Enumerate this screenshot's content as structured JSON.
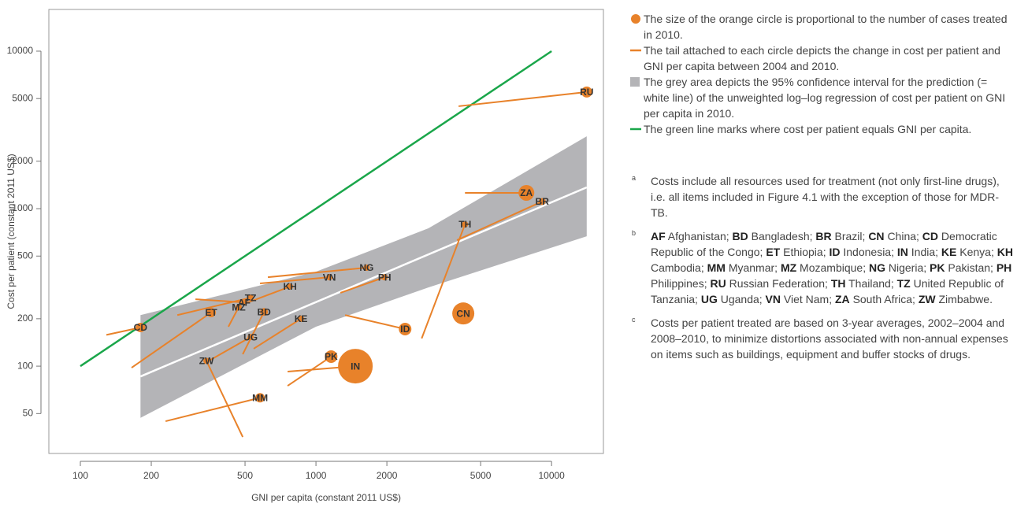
{
  "chart_data": {
    "type": "bubble",
    "x_label": "GNI per capita (constant 2011 US$)",
    "y_label": "Cost per patient (constant 2011 US$)",
    "xscale": "log",
    "yscale": "log",
    "xlim": [
      73.5,
      16600
    ],
    "ylim": [
      27.9,
      18400
    ],
    "xticks": [
      100,
      200,
      500,
      1000,
      2000,
      5000,
      10000
    ],
    "yticks": [
      50,
      100,
      200,
      500,
      1000,
      2000,
      5000,
      10000
    ],
    "color": "#e8822a",
    "labels": [
      "RU",
      "ZA",
      "BR",
      "TH",
      "CN",
      "ID",
      "IN",
      "PK",
      "MM",
      "ZW",
      "UG",
      "BD",
      "KE",
      "ET",
      "CD",
      "MZ",
      "AF",
      "TZ",
      "KH",
      "VN",
      "NG",
      "PH"
    ],
    "x": [
      14100,
      7820,
      9120,
      4290,
      4220,
      2390,
      1470,
      1160,
      579,
      343,
      528,
      602,
      864,
      359,
      180,
      470,
      496,
      528,
      776,
      1140,
      1640,
      1955
    ],
    "y": [
      5500,
      1260,
      1110,
      794,
      216,
      172,
      100,
      115,
      63,
      108,
      153,
      221,
      200,
      219,
      176,
      237,
      254,
      272,
      320,
      367,
      422,
      367
    ],
    "sizes": [
      49,
      100,
      20,
      16,
      196,
      64,
      484,
      64,
      36,
      16,
      16,
      25,
      16,
      36,
      36,
      16,
      16,
      16,
      16,
      16,
      16,
      16
    ],
    "tail_x": [
      4030,
      4290,
      3970,
      2810,
      null,
      1330,
      758,
      758,
      230,
      489,
      343,
      489,
      544,
      165,
      129,
      425,
      308,
      258,
      504,
      579,
      625,
      1270
    ],
    "tail_y": [
      4470,
      1260,
      631,
      150,
      null,
      211,
      92.3,
      75,
      44.7,
      35.5,
      106,
      119,
      129,
      97.7,
      158,
      178,
      266,
      211,
      251,
      335,
      367,
      292
    ],
    "band": {
      "color": "#b4b4b7",
      "x": [
        180,
        1000,
        3000,
        14100
      ],
      "upper": [
        211,
        398,
        750,
        2880
      ],
      "lower": [
        47,
        178,
        316,
        668
      ]
    },
    "regression": {
      "color": "#ffffff",
      "x": [
        180,
        14100
      ],
      "y": [
        86,
        1365
      ]
    },
    "equality": {
      "color": "#1aa64a",
      "x": [
        100,
        10000
      ],
      "y": [
        100,
        10000
      ]
    },
    "legend": [
      "The size of the orange circle is proportional to the number of cases treated in 2010.",
      "The tail attached to each circle depicts the change in cost per patient and GNI per capita between 2004 and 2010.",
      "The grey area depicts the 95% confidence interval for the prediction (= white line) of the unweighted log–log regression of cost per patient on GNI per capita in 2010.",
      "The green line marks where cost per patient equals GNI per capita."
    ],
    "notes": {
      "a": {
        "marker": "a",
        "text": "Costs include all resources used for treatment (not only first-line drugs), i.e. all items included in Figure 4.1 with the exception of those for MDR-TB."
      },
      "b": {
        "marker": "b",
        "entries": [
          [
            "AF",
            "Afghanistan;"
          ],
          [
            "BD",
            "Bangladesh;"
          ],
          [
            "BR",
            "Brazil;"
          ],
          [
            "CN",
            "China;"
          ],
          [
            "CD",
            "Democratic Republic of the Congo;"
          ],
          [
            "ET",
            "Ethiopia;"
          ],
          [
            "ID",
            "Indonesia;"
          ],
          [
            "IN",
            "India;"
          ],
          [
            "KE",
            "Kenya;"
          ],
          [
            "KH",
            "Cambodia;"
          ],
          [
            "MM",
            "Myanmar;"
          ],
          [
            "MZ",
            "Mozambique;"
          ],
          [
            "NG",
            "Nigeria;"
          ],
          [
            "PK",
            "Pakistan;"
          ],
          [
            "PH",
            "Philippines;"
          ],
          [
            "RU",
            "Russian Federation;"
          ],
          [
            "TH",
            "Thailand;"
          ],
          [
            "TZ",
            "United Republic of Tanzania;"
          ],
          [
            "UG",
            "Uganda;"
          ],
          [
            "VN",
            "Viet Nam;"
          ],
          [
            "ZA",
            "South Africa;"
          ],
          [
            "ZW",
            "Zimbabwe."
          ]
        ]
      },
      "c": {
        "marker": "c",
        "text": "Costs per patient treated are based on 3-year averages, 2002–2004 and 2008–2010, to minimize distortions associated with non-annual expenses on items such as buildings, equipment and buffer stocks of drugs."
      }
    }
  }
}
